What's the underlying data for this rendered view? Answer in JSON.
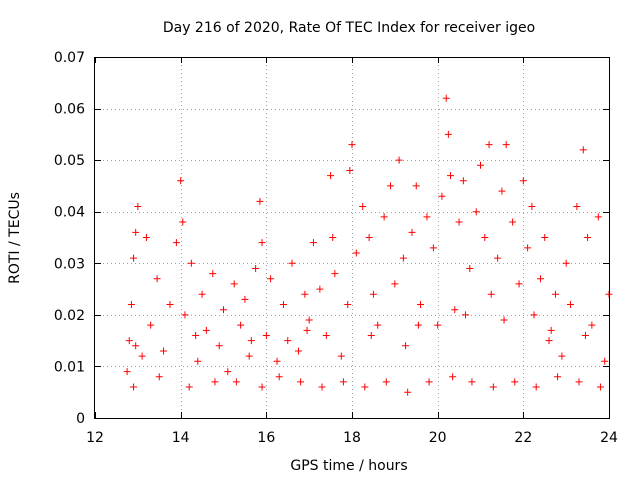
{
  "chart_data": {
    "type": "scatter",
    "title": "Day 216 of 2020, Rate Of TEC Index for receiver igeo",
    "xlabel": "GPS time / hours",
    "ylabel": "ROTI / TECUs",
    "xlim": [
      12,
      24
    ],
    "ylim": [
      0,
      0.07
    ],
    "xticks": [
      "12",
      "14",
      "16",
      "18",
      "20",
      "22",
      "24"
    ],
    "yticks": [
      "0",
      "0.01",
      "0.02",
      "0.03",
      "0.04",
      "0.05",
      "0.06",
      "0.07"
    ],
    "grid": true,
    "marker": "plus",
    "series": [
      {
        "name": "ROTI",
        "color": "#ff0000",
        "x": [
          12.75,
          12.8,
          12.85,
          12.9,
          12.95,
          13.0,
          13.1,
          13.2,
          13.3,
          13.45,
          13.6,
          13.75,
          13.9,
          14.0,
          14.05,
          14.1,
          14.25,
          14.4,
          14.5,
          14.6,
          14.75,
          14.9,
          15.0,
          15.1,
          15.25,
          15.4,
          15.5,
          15.6,
          15.75,
          15.85,
          15.9,
          16.0,
          16.1,
          16.25,
          16.4,
          16.5,
          16.6,
          16.75,
          16.9,
          17.0,
          17.1,
          17.25,
          17.4,
          17.5,
          17.55,
          17.6,
          17.75,
          17.9,
          17.95,
          18.0,
          18.1,
          18.25,
          18.4,
          18.5,
          18.6,
          18.75,
          18.9,
          19.0,
          19.1,
          19.2,
          19.25,
          19.4,
          19.5,
          19.6,
          19.75,
          19.9,
          20.0,
          20.1,
          20.2,
          20.25,
          20.3,
          20.4,
          20.5,
          20.6,
          20.75,
          20.9,
          21.0,
          21.1,
          21.2,
          21.25,
          21.4,
          21.5,
          21.6,
          21.75,
          21.9,
          22.0,
          22.1,
          22.2,
          22.25,
          22.4,
          22.5,
          22.6,
          22.75,
          22.9,
          23.0,
          23.1,
          23.25,
          23.4,
          23.5,
          23.6,
          23.75,
          23.9,
          24.0,
          12.9,
          13.5,
          14.2,
          14.8,
          15.3,
          15.9,
          16.3,
          16.8,
          17.3,
          17.8,
          18.3,
          18.8,
          19.3,
          19.8,
          20.35,
          20.8,
          21.3,
          21.8,
          22.3,
          22.8,
          23.3,
          23.8,
          12.95,
          14.35,
          15.65,
          16.95,
          18.45,
          19.55,
          20.65,
          21.55,
          22.65,
          23.45
        ],
        "y": [
          0.009,
          0.015,
          0.022,
          0.031,
          0.036,
          0.041,
          0.012,
          0.035,
          0.018,
          0.027,
          0.013,
          0.022,
          0.034,
          0.046,
          0.038,
          0.02,
          0.03,
          0.011,
          0.024,
          0.017,
          0.028,
          0.014,
          0.021,
          0.009,
          0.026,
          0.018,
          0.023,
          0.012,
          0.029,
          0.042,
          0.034,
          0.016,
          0.027,
          0.011,
          0.022,
          0.015,
          0.03,
          0.013,
          0.024,
          0.019,
          0.034,
          0.025,
          0.016,
          0.047,
          0.035,
          0.028,
          0.012,
          0.022,
          0.048,
          0.053,
          0.032,
          0.041,
          0.035,
          0.024,
          0.018,
          0.039,
          0.045,
          0.026,
          0.05,
          0.031,
          0.014,
          0.036,
          0.045,
          0.022,
          0.039,
          0.033,
          0.018,
          0.043,
          0.062,
          0.055,
          0.047,
          0.021,
          0.038,
          0.046,
          0.029,
          0.04,
          0.049,
          0.035,
          0.053,
          0.024,
          0.031,
          0.044,
          0.053,
          0.038,
          0.026,
          0.046,
          0.033,
          0.041,
          0.02,
          0.027,
          0.035,
          0.015,
          0.024,
          0.012,
          0.03,
          0.022,
          0.041,
          0.052,
          0.035,
          0.018,
          0.039,
          0.011,
          0.024,
          0.006,
          0.008,
          0.006,
          0.007,
          0.007,
          0.006,
          0.008,
          0.007,
          0.006,
          0.007,
          0.006,
          0.007,
          0.005,
          0.007,
          0.008,
          0.007,
          0.006,
          0.007,
          0.006,
          0.008,
          0.007,
          0.006,
          0.014,
          0.016,
          0.015,
          0.017,
          0.016,
          0.018,
          0.02,
          0.019,
          0.017,
          0.016
        ]
      }
    ]
  }
}
